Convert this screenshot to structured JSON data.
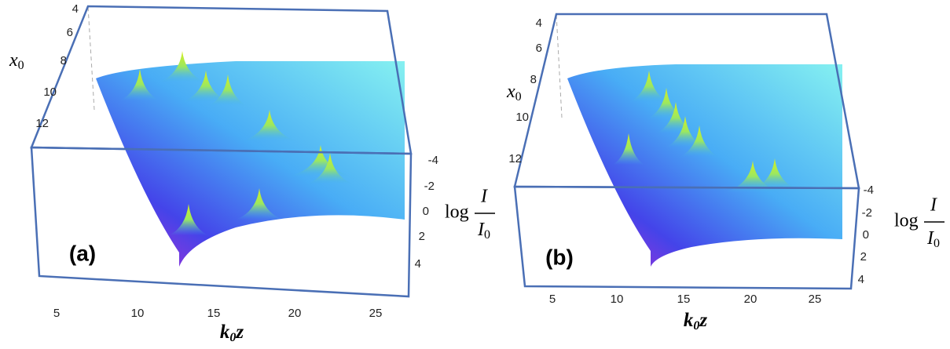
{
  "panels": [
    {
      "label": "(a)",
      "x_ticks": [
        "5",
        "10",
        "15",
        "20",
        "25"
      ],
      "y_ticks": [
        "4",
        "6",
        "8",
        "10",
        "12"
      ],
      "z_ticks": [
        "-4",
        "-2",
        "0",
        "2",
        "4"
      ],
      "x_axis": {
        "base": "k",
        "sub": "0",
        "after": "z"
      },
      "y_axis": {
        "base": "x",
        "sub": "0"
      },
      "z_axis": {
        "prefix": "log",
        "numerator": "I",
        "denominator": "I",
        "denominator_sub": "0"
      }
    },
    {
      "label": "(b)",
      "x_ticks": [
        "5",
        "10",
        "15",
        "20",
        "25"
      ],
      "y_ticks": [
        "4",
        "6",
        "8",
        "10",
        "12"
      ],
      "z_ticks": [
        "-4",
        "-2",
        "0",
        "2",
        "4"
      ],
      "x_axis": {
        "base": "k",
        "sub": "0",
        "after": "z"
      },
      "y_axis": {
        "base": "x",
        "sub": "0"
      },
      "z_axis": {
        "prefix": "log",
        "numerator": "I",
        "denominator": "I",
        "denominator_sub": "0"
      }
    }
  ]
}
